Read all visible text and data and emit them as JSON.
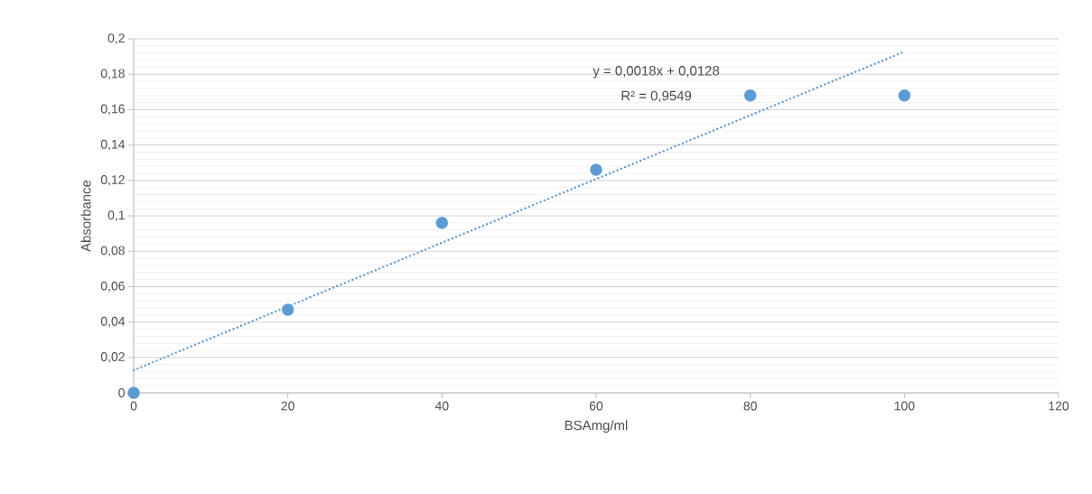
{
  "chart_data": {
    "type": "scatter",
    "xlabel": "BSAmg/ml",
    "ylabel": "Absorbance",
    "series": [
      {
        "color": "#5b9bd5",
        "marker": "circle",
        "x": [
          0,
          20,
          40,
          60,
          80,
          100
        ],
        "values": [
          0,
          0.047,
          0.096,
          0.126,
          0.168,
          0.168
        ]
      },
      {
        "type": "line",
        "color": "#5b9bd5",
        "line_style": "dotted",
        "marker": "none",
        "x": [
          0,
          100
        ],
        "values": [
          0.0128,
          0.1928
        ]
      }
    ],
    "annotations": [
      "y = 0,0018x + 0,0128",
      "R² = 0,9549"
    ],
    "xlim": [
      0,
      120
    ],
    "xticks": [
      0,
      20,
      40,
      60,
      80,
      100,
      120
    ],
    "ylim": [
      0,
      0.2
    ],
    "yticks": [
      {
        "value": 0,
        "label": "0"
      },
      {
        "value": 0.02,
        "label": "0,02"
      },
      {
        "value": 0.04,
        "label": "0,04"
      },
      {
        "value": 0.06,
        "label": "0,06"
      },
      {
        "value": 0.08,
        "label": "0,08"
      },
      {
        "value": 0.1,
        "label": "0,1"
      },
      {
        "value": 0.12,
        "label": "0,12"
      },
      {
        "value": 0.14,
        "label": "0,14"
      },
      {
        "value": 0.16,
        "label": "0,16"
      },
      {
        "value": 0.18,
        "label": "0,18"
      },
      {
        "value": 0.2,
        "label": "0,2"
      }
    ],
    "grid": "y"
  }
}
